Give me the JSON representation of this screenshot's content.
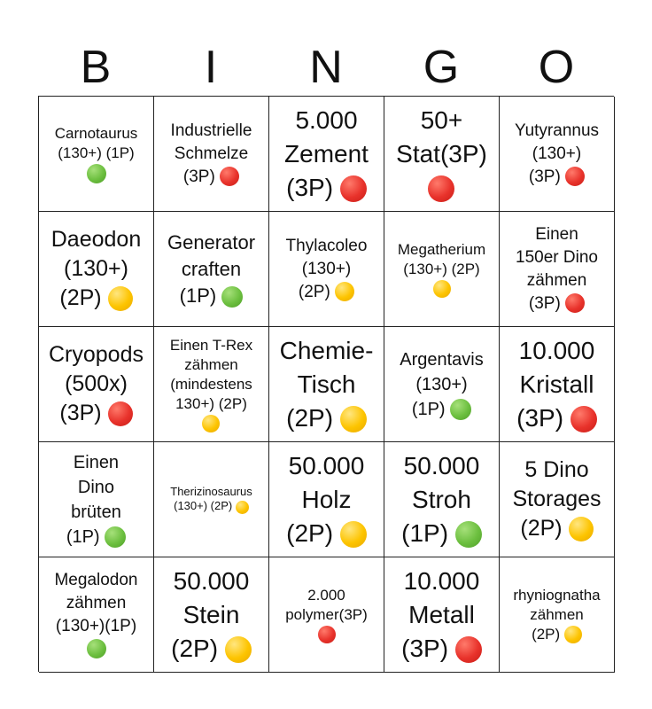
{
  "header": {
    "letters": [
      "B",
      "I",
      "N",
      "G",
      "O"
    ]
  },
  "colors": {
    "red": "#e8322b",
    "yellow": "#fdc400",
    "green": "#6cbf3f"
  },
  "cells": [
    {
      "text": "Carnotaurus\n(130+) (1P)",
      "dot": "green"
    },
    {
      "text": "Industrielle\nSchmelze\n(3P)",
      "dot": "red"
    },
    {
      "text": "5.000\nZement\n(3P)",
      "dot": "red"
    },
    {
      "text": "50+\nStat(3P)",
      "dot": "red"
    },
    {
      "text": "Yutyrannus\n(130+)\n(3P)",
      "dot": "red"
    },
    {
      "text": "Daeodon\n(130+)\n(2P)",
      "dot": "yellow"
    },
    {
      "text": "Generator\ncraften\n(1P)",
      "dot": "green"
    },
    {
      "text": "Thylacoleo\n(130+)\n(2P)",
      "dot": "yellow"
    },
    {
      "text": "Megatherium\n(130+) (2P)",
      "dot": "yellow"
    },
    {
      "text": "Einen\n150er Dino\nzähmen\n(3P)",
      "dot": "red"
    },
    {
      "text": "Cryopods\n(500x)\n(3P)",
      "dot": "red"
    },
    {
      "text": "Einen T-Rex\nzähmen\n(mindestens\n130+) (2P)",
      "dot": "yellow"
    },
    {
      "text": "Chemie-\nTisch\n(2P)",
      "dot": "yellow"
    },
    {
      "text": "Argentavis\n(130+)\n(1P)",
      "dot": "green"
    },
    {
      "text": "10.000\nKristall\n(3P)",
      "dot": "red"
    },
    {
      "text": "Einen\nDino\nbrüten\n(1P)",
      "dot": "green"
    },
    {
      "text": "Therizinosaurus\n(130+) (2P)",
      "dot": "yellow"
    },
    {
      "text": "50.000\nHolz\n(2P)",
      "dot": "yellow"
    },
    {
      "text": "50.000\nStroh\n(1P)",
      "dot": "green"
    },
    {
      "text": "5 Dino\nStorages\n(2P)",
      "dot": "yellow"
    },
    {
      "text": "Megalodon\nzähmen\n(130+)(1P)",
      "dot": "green"
    },
    {
      "text": "50.000\nStein\n(2P)",
      "dot": "yellow"
    },
    {
      "text": "2.000\npolymer(3P)",
      "dot": "red"
    },
    {
      "text": "10.000\nMetall\n(3P)",
      "dot": "red"
    },
    {
      "text": "rhyniognatha\nzähmen\n(2P)",
      "dot": "yellow"
    }
  ]
}
